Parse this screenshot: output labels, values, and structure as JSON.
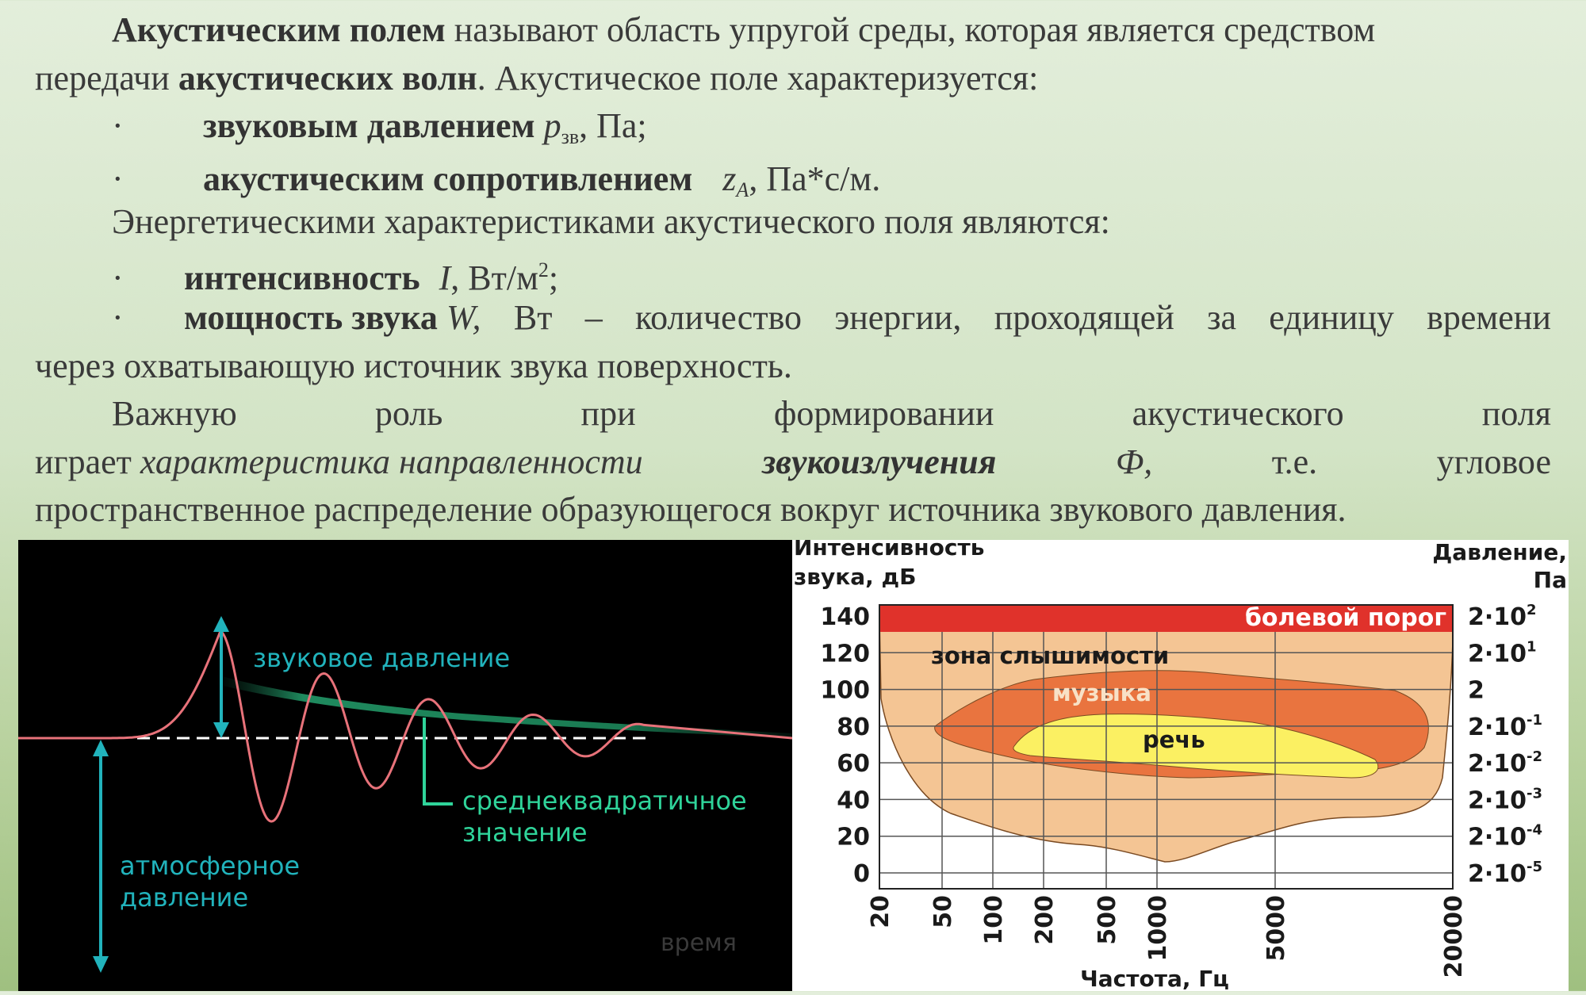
{
  "text": {
    "l1_b": "Акустическим полем",
    "l1_r": " называют область упругой среды, которая является средством",
    "l2_a": "передачи ",
    "l2_b": "акустических волн",
    "l2_c": ". Акустическое поле характеризуется:",
    "bullet": "·",
    "b1_b": "звуковым давлением",
    "b1_var": "p",
    "b1_sub": "зв",
    "b1_unit": ", Па;",
    "b2_b": "акустическим сопротивлением",
    "b2_var": "z",
    "b2_sub": "A",
    "b2_unit": ", Па*с/м.",
    "energy": "Энергетическими характеристиками акустического поля являются:",
    "b3_b": "интенсивность",
    "b3_var": "I",
    "b3_unit": ", Вт/м",
    "b3_sup": "2",
    "b3_end": ";",
    "b4_b": "мощность звука",
    "b4_var": "W,",
    "b4_words": [
      "Вт",
      "–",
      "количество",
      "энергии,",
      "проходящей",
      "за",
      "единицу",
      "времени"
    ],
    "l9": "через охватывающую источник звука поверхность.",
    "l10_words": [
      "Важную",
      "роль",
      "при",
      "формировании",
      "акустического",
      "поля"
    ],
    "l11_a": "играет",
    "l11_i": "характеристика направленности",
    "l11_bi": "звукоизлучения",
    "l11_phi": "Ф,",
    "l11_c": "т.е.",
    "l11_d": "угловое",
    "l12": "пространственное распределение образующегося вокруг источника звукового давления."
  },
  "wave_figure": {
    "label_sound_pressure": "звуковое давление",
    "label_rms_1": "среднеквадратичное",
    "label_rms_2": "значение",
    "label_atm_1": "атмосферное",
    "label_atm_2": "давление",
    "label_time": "время",
    "colors": {
      "wave": "#e8727a",
      "arrow": "#21b3bc",
      "rms": "#2fd49a",
      "baseline": "#ffffff"
    }
  },
  "chart_data": {
    "type": "area",
    "ylabel_left_1": "Интенсивность",
    "ylabel_left_2": "звука, дБ",
    "ylabel_right_1": "Давление,",
    "ylabel_right_2": "Па",
    "xlabel": "Частота, Гц",
    "x_ticks": [
      "20",
      "50",
      "100",
      "200",
      "500",
      "1000",
      "5000",
      "20000"
    ],
    "y_ticks": [
      "140",
      "120",
      "100",
      "80",
      "60",
      "40",
      "20",
      "0"
    ],
    "y_right_ticks": [
      {
        "base": "2·10",
        "exp": "2"
      },
      {
        "base": "2·10",
        "exp": "1"
      },
      {
        "base": "2",
        "exp": ""
      },
      {
        "base": "2·10",
        "exp": "-1"
      },
      {
        "base": "2·10",
        "exp": "-2"
      },
      {
        "base": "2·10",
        "exp": "-3"
      },
      {
        "base": "2·10",
        "exp": "-4"
      },
      {
        "base": "2·10",
        "exp": "-5"
      }
    ],
    "ylim": [
      0,
      140
    ],
    "regions": [
      {
        "name": "болевой порог",
        "color": "#e0322b"
      },
      {
        "name": "зона слышимости",
        "color": "#f4c594"
      },
      {
        "name": "музыка",
        "color": "#e9743f"
      },
      {
        "name": "речь",
        "color": "#fbf062"
      }
    ]
  }
}
